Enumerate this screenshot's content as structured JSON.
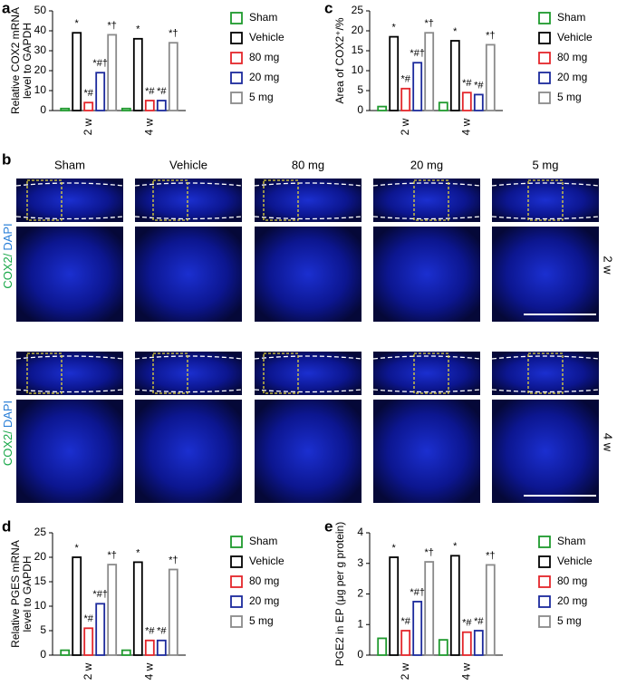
{
  "panel_labels": [
    "a",
    "b",
    "c",
    "d",
    "e"
  ],
  "micrographs": {
    "columns": [
      "Sham",
      "Vehicle",
      "80 mg",
      "20 mg",
      "5 mg"
    ],
    "stain_label": [
      "COX2/",
      "DAPI"
    ],
    "rows": [
      "2 w",
      "4 w"
    ]
  },
  "chart_data": [
    {
      "type": "bar",
      "ylabel": [
        "Relative COX2 mRNA",
        "level to GAPDH"
      ],
      "categories": [
        "2 w",
        "4 w"
      ],
      "ylim": [
        0,
        50
      ],
      "yticks": [
        0,
        10,
        20,
        30,
        40,
        50
      ],
      "series": [
        {
          "name": "Sham",
          "color": "#1f9a2e",
          "values": [
            1,
            1
          ],
          "annotations": [
            null,
            null
          ]
        },
        {
          "name": "Vehicle",
          "color": "#000000",
          "values": [
            39,
            36
          ],
          "annotations": [
            "*",
            "*"
          ]
        },
        {
          "name": "80 mg",
          "color": "#e3262b",
          "values": [
            4,
            5
          ],
          "annotations": [
            "*#",
            "*#"
          ]
        },
        {
          "name": "20 mg",
          "color": "#1c2a9c",
          "values": [
            19,
            5
          ],
          "annotations": [
            "*#†",
            "*#"
          ]
        },
        {
          "name": "5 mg",
          "color": "#8a8a8a",
          "values": [
            38,
            34
          ],
          "annotations": [
            "*†",
            "*†"
          ]
        }
      ]
    },
    {
      "type": "bar",
      "ylabel": [
        "Area of COX2⁺/%"
      ],
      "categories": [
        "2 w",
        "4 w"
      ],
      "ylim": [
        0,
        25
      ],
      "yticks": [
        0,
        5,
        10,
        15,
        20,
        25
      ],
      "series": [
        {
          "name": "Sham",
          "color": "#1f9a2e",
          "values": [
            1,
            2
          ],
          "annotations": [
            null,
            null
          ]
        },
        {
          "name": "Vehicle",
          "color": "#000000",
          "values": [
            18.5,
            17.5
          ],
          "annotations": [
            "*",
            "*"
          ]
        },
        {
          "name": "80 mg",
          "color": "#e3262b",
          "values": [
            5.5,
            4.5
          ],
          "annotations": [
            "*#",
            "*#"
          ]
        },
        {
          "name": "20 mg",
          "color": "#1c2a9c",
          "values": [
            12,
            4
          ],
          "annotations": [
            "*#†",
            "*#"
          ]
        },
        {
          "name": "5 mg",
          "color": "#8a8a8a",
          "values": [
            19.5,
            16.5
          ],
          "annotations": [
            "*†",
            "*†"
          ]
        }
      ]
    },
    {
      "type": "bar",
      "ylabel": [
        "Relative PGES mRNA",
        "level to GAPDH"
      ],
      "categories": [
        "2 w",
        "4 w"
      ],
      "ylim": [
        0,
        25
      ],
      "yticks": [
        0,
        5,
        10,
        15,
        20,
        25
      ],
      "series": [
        {
          "name": "Sham",
          "color": "#1f9a2e",
          "values": [
            1,
            1
          ],
          "annotations": [
            null,
            null
          ]
        },
        {
          "name": "Vehicle",
          "color": "#000000",
          "values": [
            20,
            19
          ],
          "annotations": [
            "*",
            "*"
          ]
        },
        {
          "name": "80 mg",
          "color": "#e3262b",
          "values": [
            5.5,
            3
          ],
          "annotations": [
            "*#",
            "*#"
          ]
        },
        {
          "name": "20 mg",
          "color": "#1c2a9c",
          "values": [
            10.5,
            3
          ],
          "annotations": [
            "*#†",
            "*#"
          ]
        },
        {
          "name": "5 mg",
          "color": "#8a8a8a",
          "values": [
            18.5,
            17.5
          ],
          "annotations": [
            "*†",
            "*†"
          ]
        }
      ]
    },
    {
      "type": "bar",
      "ylabel": [
        "PGE2 in EP (μg per g protein)"
      ],
      "categories": [
        "2 w",
        "4 w"
      ],
      "ylim": [
        0,
        4
      ],
      "yticks": [
        0,
        1,
        2,
        3,
        4
      ],
      "series": [
        {
          "name": "Sham",
          "color": "#1f9a2e",
          "values": [
            0.55,
            0.5
          ],
          "annotations": [
            null,
            null
          ]
        },
        {
          "name": "Vehicle",
          "color": "#000000",
          "values": [
            3.2,
            3.25
          ],
          "annotations": [
            "*",
            "*"
          ]
        },
        {
          "name": "80 mg",
          "color": "#e3262b",
          "values": [
            0.8,
            0.75
          ],
          "annotations": [
            "*#",
            "*#"
          ]
        },
        {
          "name": "20 mg",
          "color": "#1c2a9c",
          "values": [
            1.75,
            0.8
          ],
          "annotations": [
            "*#†",
            "*#"
          ]
        },
        {
          "name": "5 mg",
          "color": "#8a8a8a",
          "values": [
            3.05,
            2.95
          ],
          "annotations": [
            "*†",
            "*†"
          ]
        }
      ]
    }
  ]
}
